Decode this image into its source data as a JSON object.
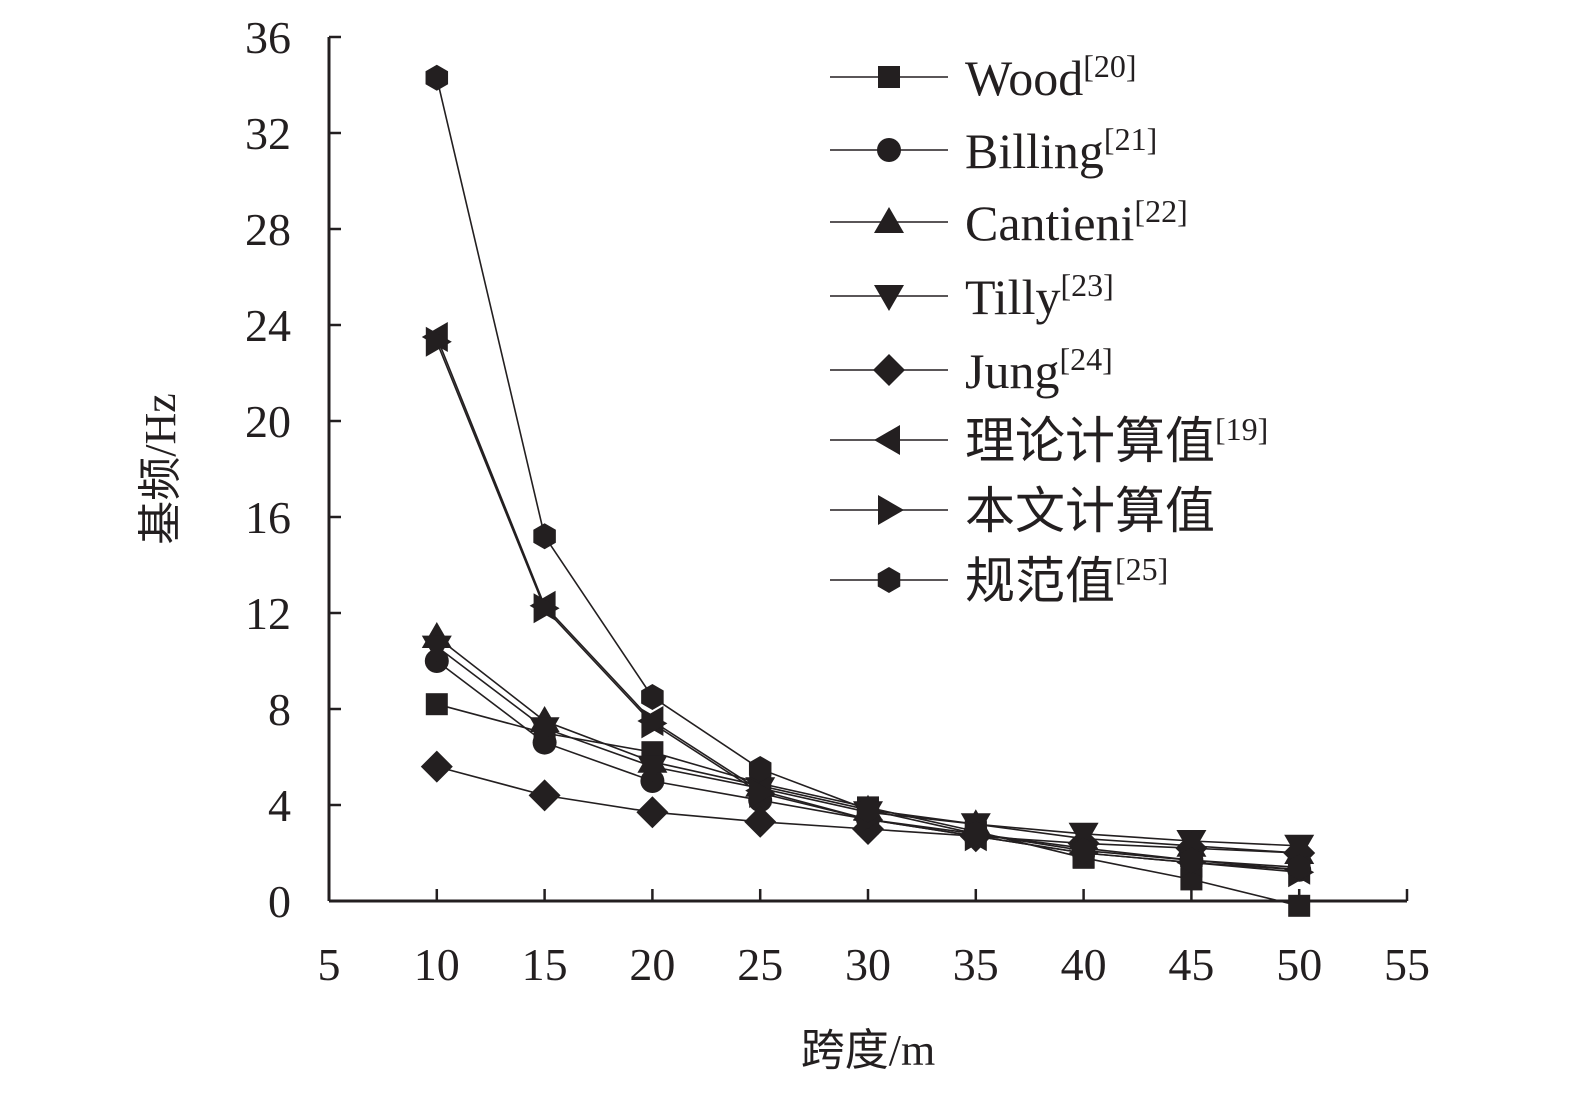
{
  "chart_data": {
    "type": "line",
    "title": "",
    "xlabel": "跨度/m",
    "ylabel": "基频/Hz",
    "xlim": [
      5,
      55
    ],
    "ylim": [
      0,
      36
    ],
    "xticks": [
      "5",
      "10",
      "15",
      "20",
      "25",
      "30",
      "35",
      "40",
      "45",
      "50",
      "55"
    ],
    "yticks": [
      "0",
      "4",
      "8",
      "12",
      "16",
      "20",
      "24",
      "28",
      "32",
      "36"
    ],
    "grid": false,
    "legend_position": "top-right",
    "x": [
      10,
      15,
      20,
      25,
      30,
      35,
      40,
      45,
      50
    ],
    "series": [
      {
        "name": "Wood",
        "ref": "[20]",
        "marker": "square",
        "values": [
          8.2,
          7.0,
          6.2,
          4.9,
          3.9,
          2.9,
          1.8,
          0.9,
          -0.2
        ]
      },
      {
        "name": "Billing",
        "ref": "[21]",
        "marker": "circle",
        "values": [
          10.0,
          6.6,
          5.0,
          4.2,
          3.4,
          2.8,
          2.2,
          1.7,
          1.3
        ]
      },
      {
        "name": "Cantieni",
        "ref": "[22]",
        "marker": "triangle-up",
        "values": [
          11.0,
          7.5,
          5.8,
          4.8,
          3.8,
          3.2,
          2.6,
          2.3,
          2.0
        ]
      },
      {
        "name": "Tilly",
        "ref": "[23]",
        "marker": "triangle-down",
        "values": [
          10.6,
          7.2,
          5.6,
          4.7,
          3.7,
          3.2,
          2.8,
          2.5,
          2.3
        ]
      },
      {
        "name": "Jung",
        "ref": "[24]",
        "marker": "diamond",
        "values": [
          5.6,
          4.4,
          3.7,
          3.3,
          3.0,
          2.7,
          2.4,
          2.2,
          2.0
        ]
      },
      {
        "name": "理论计算值",
        "ref": "[19]",
        "marker": "triangle-left",
        "values": [
          23.5,
          12.3,
          7.5,
          4.6,
          3.4,
          2.7,
          2.0,
          1.6,
          1.3
        ]
      },
      {
        "name": "本文计算值",
        "ref": "",
        "marker": "triangle-right",
        "values": [
          23.3,
          12.2,
          7.4,
          4.5,
          3.4,
          2.7,
          2.0,
          1.6,
          1.2
        ]
      },
      {
        "name": "规范值",
        "ref": "[25]",
        "marker": "hexagon",
        "values": [
          34.3,
          15.2,
          8.5,
          5.5,
          3.8,
          2.8,
          2.1,
          1.7,
          1.4
        ]
      }
    ],
    "colors": {
      "ink": "#231f20"
    }
  }
}
